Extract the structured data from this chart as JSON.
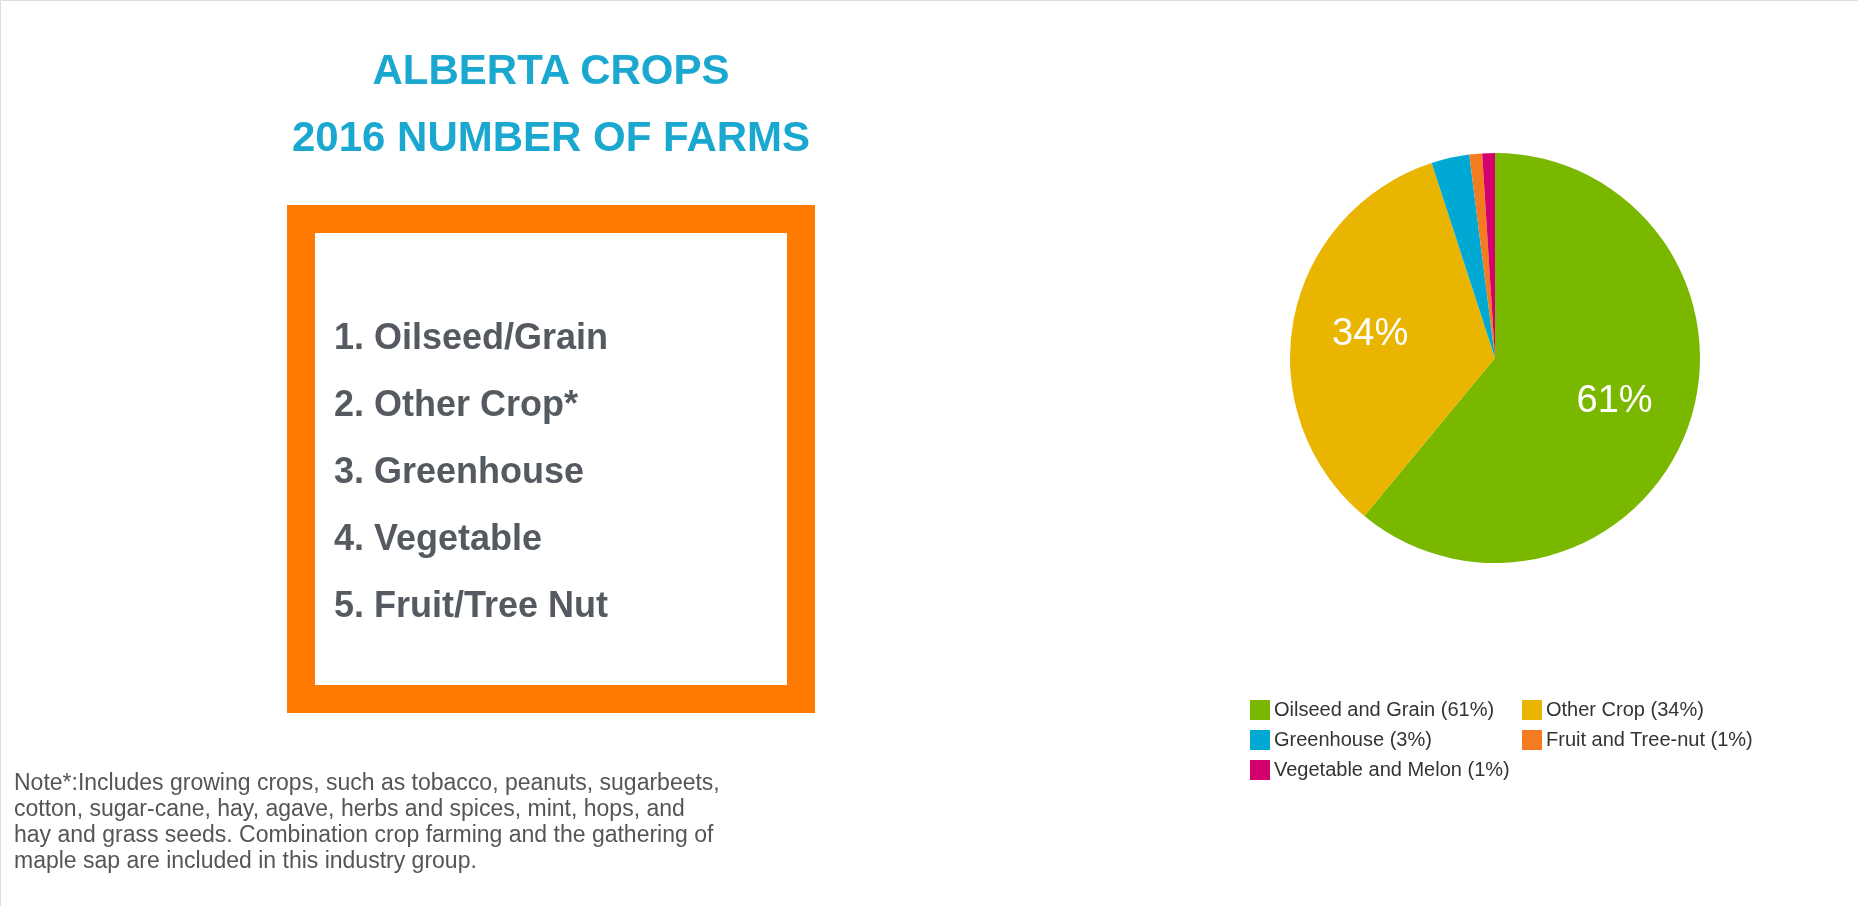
{
  "chart_data": {
    "type": "pie",
    "title": "ALBERTA CROPS",
    "subtitle": "2016 NUMBER OF FARMS",
    "categories": [
      "Oilseed and Grain (61%)",
      "Other Crop (34%)",
      "Greenhouse (3%)",
      "Fruit and Tree-nut (1%)",
      "Vegetable and Melon (1%)"
    ],
    "values": [
      61,
      34,
      3,
      1,
      1
    ],
    "colors": [
      "#7ab800",
      "#e9b500",
      "#00a9d4",
      "#f47b20",
      "#d4006e"
    ],
    "value_labels": [
      "61%",
      "34%",
      null,
      null,
      null
    ],
    "legend": "bottom right",
    "annotations": [
      "1. Oilseed/Grain",
      "2. Other Crop*",
      "3. Greenhouse",
      "4. Vegetable",
      "5. Fruit/Tree Nut",
      "Note*:Includes growing crops, such as tobacco, peanuts, sugarbeets,\ncotton, sugar-cane, hay, agave, herbs and spices, mint, hops, and\nhay and grass seeds. Combination crop farming and the gathering of\nmaple sap are included in this industry group."
    ]
  }
}
